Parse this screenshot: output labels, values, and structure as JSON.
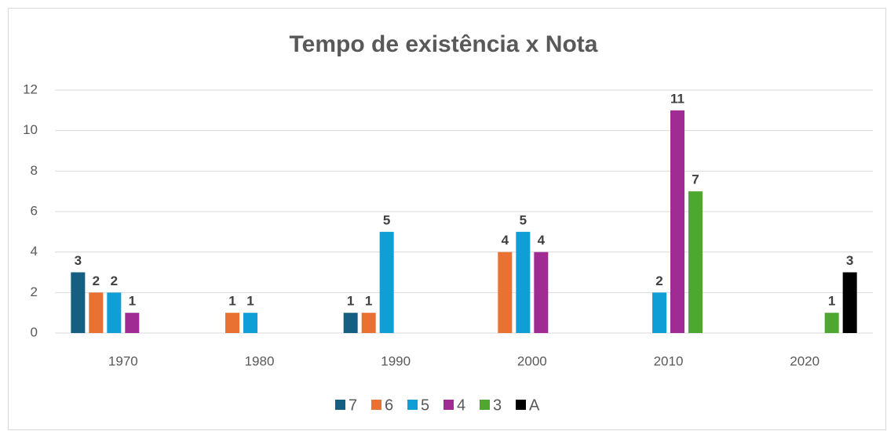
{
  "chart_data": {
    "type": "bar",
    "title": "Tempo de existência x Nota",
    "categories": [
      "1970",
      "1980",
      "1990",
      "2000",
      "2010",
      "2020"
    ],
    "series": [
      {
        "name": "7",
        "color": "#156082",
        "values": [
          3,
          null,
          1,
          null,
          null,
          null
        ]
      },
      {
        "name": "6",
        "color": "#e97132",
        "values": [
          2,
          1,
          1,
          4,
          null,
          null
        ]
      },
      {
        "name": "5",
        "color": "#0f9ed5",
        "values": [
          2,
          1,
          5,
          5,
          2,
          null
        ]
      },
      {
        "name": "4",
        "color": "#a02b93",
        "values": [
          1,
          null,
          null,
          4,
          11,
          null
        ]
      },
      {
        "name": "3",
        "color": "#4ea72e",
        "values": [
          null,
          null,
          null,
          null,
          7,
          1
        ]
      },
      {
        "name": "A",
        "color": "#000000",
        "values": [
          null,
          null,
          null,
          null,
          null,
          3
        ]
      }
    ],
    "ylim": [
      0,
      12
    ],
    "yticks": [
      0,
      2,
      4,
      6,
      8,
      10,
      12
    ],
    "grid": true,
    "legend": "bottom"
  }
}
